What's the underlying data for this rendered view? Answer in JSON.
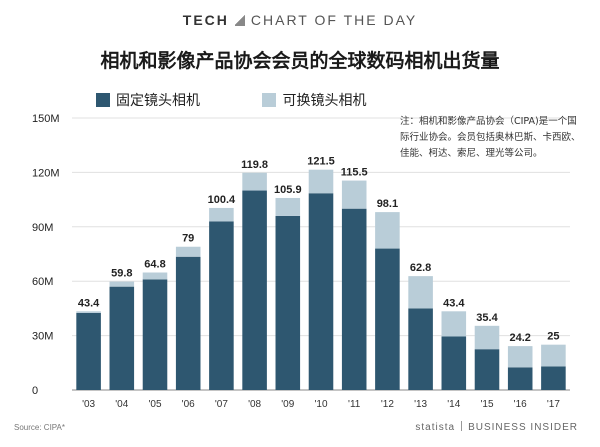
{
  "header": {
    "left": "TECH",
    "right": "CHART OF THE DAY"
  },
  "title": "相机和影像产品协会会员的全球数码相机出货量",
  "note": "注：相机和影像产品协会（CIPA)是一个国际行业协会。会员包括奥林巴斯、卡西欧、佳能、柯达、索尼、理光等公司。",
  "source": "Source: CIPA*",
  "footer": {
    "statista": "statista",
    "brand": "BUSINESS INSIDER"
  },
  "colors": {
    "fixed": "#2e5770",
    "interchangeable": "#b9cdd8",
    "grid": "#e0e0e0"
  },
  "chart_data": {
    "type": "bar",
    "stacked": true,
    "categories": [
      "'03",
      "'04",
      "'05",
      "'06",
      "'07",
      "'08",
      "'09",
      "'10",
      "'11",
      "'12",
      "'13",
      "'14",
      "'15",
      "'16",
      "'17"
    ],
    "series": [
      {
        "name": "固定镜头相机",
        "values": [
          42.5,
          57.0,
          61.0,
          73.5,
          93.0,
          110.0,
          96.0,
          108.5,
          100.0,
          78.0,
          45.0,
          29.5,
          22.5,
          12.5,
          13.0
        ]
      },
      {
        "name": "可换镜头相机",
        "values": [
          0.9,
          2.8,
          3.8,
          5.5,
          7.4,
          9.8,
          9.9,
          13.0,
          15.5,
          20.1,
          17.8,
          13.9,
          12.9,
          11.7,
          12.0
        ]
      }
    ],
    "totals": [
      "43.4",
      "59.8",
      "64.8",
      "79",
      "100.4",
      "119.8",
      "105.9",
      "121.5",
      "115.5",
      "98.1",
      "62.8",
      "43.4",
      "35.4",
      "24.2",
      "25"
    ],
    "yticks": [
      "0",
      "30M",
      "60M",
      "90M",
      "120M",
      "150M"
    ],
    "ylim": [
      0,
      150
    ],
    "grid": true,
    "legend": "top-left"
  }
}
